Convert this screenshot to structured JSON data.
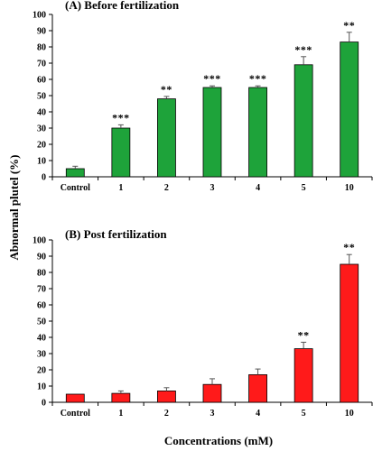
{
  "figure": {
    "ylabel": "Abnormal plutel (%)",
    "xlabel": "Concentrations (mM)"
  },
  "chart_data": [
    {
      "type": "bar",
      "title": "(A) Before fertilization",
      "categories": [
        "Control",
        "1",
        "2",
        "3",
        "4",
        "5",
        "10"
      ],
      "values": [
        5,
        30,
        48,
        55,
        55,
        69,
        83
      ],
      "errors": [
        1.5,
        2,
        1.5,
        1,
        1,
        5,
        6
      ],
      "significance": [
        "",
        "***",
        "**",
        "***",
        "***",
        "***",
        "**"
      ],
      "ylim": [
        0,
        100
      ],
      "yticks": [
        0,
        10,
        20,
        30,
        40,
        50,
        60,
        70,
        80,
        90,
        100
      ],
      "bar_color": "#1ea33a",
      "grid": false
    },
    {
      "type": "bar",
      "title": "(B) Post fertilization",
      "categories": [
        "Control",
        "1",
        "2",
        "3",
        "4",
        "5",
        "10"
      ],
      "values": [
        5,
        5.5,
        7,
        11,
        17,
        33,
        85
      ],
      "errors": [
        0,
        1.5,
        2,
        3.5,
        3.5,
        4,
        6
      ],
      "significance": [
        "",
        "",
        "",
        "",
        "",
        "**",
        "**"
      ],
      "ylim": [
        0,
        100
      ],
      "yticks": [
        0,
        10,
        20,
        30,
        40,
        50,
        60,
        70,
        80,
        90,
        100
      ],
      "bar_color": "#ff1a1a",
      "grid": false
    }
  ]
}
